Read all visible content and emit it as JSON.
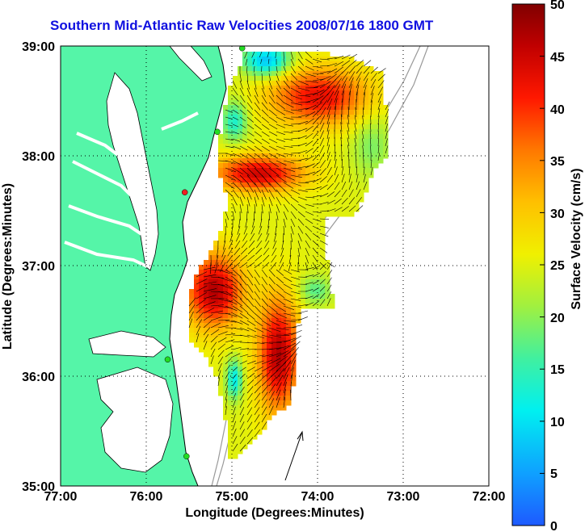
{
  "title": "Southern Mid-Atlantic Raw Velocities 2008/07/16 1800 GMT",
  "map": {
    "xlabel": "Longitude (Degrees:Minutes)",
    "ylabel": "Latitude (Degrees:Minutes)",
    "lon_range": [
      -77,
      -72
    ],
    "lat_range": [
      35,
      39
    ],
    "x_ticks": [
      "77:00",
      "76:00",
      "75:00",
      "74:00",
      "73:00",
      "72:00"
    ],
    "y_ticks": [
      "35:00",
      "36:00",
      "37:00",
      "38:00",
      "39:00"
    ],
    "land_color": "#55f5a8",
    "grid": "dotted",
    "stations": [
      {
        "lon": -74.88,
        "lat": 38.98,
        "color": "#22dd22"
      },
      {
        "lon": -75.17,
        "lat": 38.22,
        "color": "#22dd22"
      },
      {
        "lon": -75.55,
        "lat": 37.67,
        "color": "#ee2222"
      },
      {
        "lon": -75.75,
        "lat": 36.15,
        "color": "#22dd22"
      },
      {
        "lon": -75.53,
        "lat": 35.27,
        "color": "#22dd22"
      }
    ]
  },
  "colorbar": {
    "label": "Surface Velocity (cm/s)",
    "ticks": [
      "0",
      "5",
      "10",
      "15",
      "20",
      "25",
      "30",
      "35",
      "40",
      "45",
      "50"
    ],
    "range": [
      0,
      50
    ]
  }
}
